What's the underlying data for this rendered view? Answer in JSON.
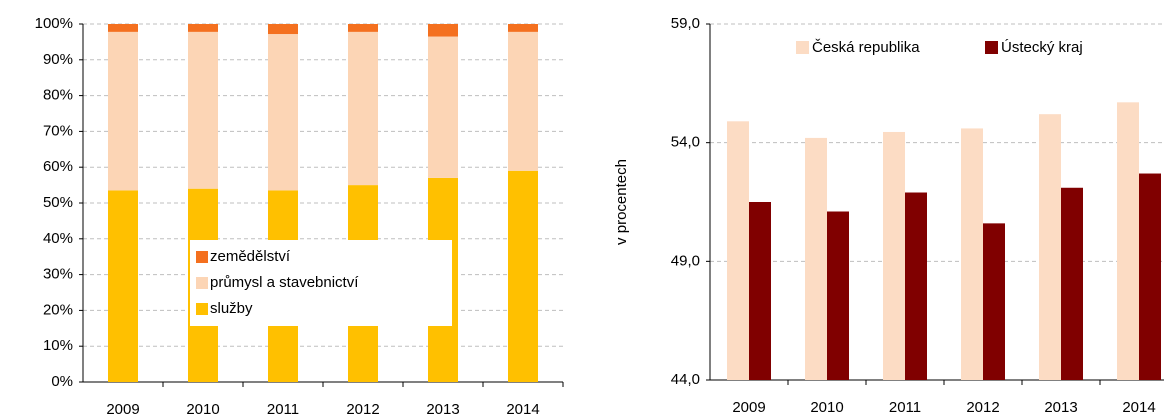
{
  "chart_data": [
    {
      "type": "bar",
      "stacked": true,
      "categories": [
        "2009",
        "2010",
        "2011",
        "2012",
        "2013",
        "2014"
      ],
      "series": [
        {
          "name": "služby",
          "color": "#ffc000",
          "values": [
            53.5,
            54,
            53.5,
            55,
            57,
            59
          ]
        },
        {
          "name": "průmysl a stavebnictví",
          "color": "#fcd5b5",
          "values": [
            44.3,
            43.8,
            43.7,
            42.8,
            39.5,
            38.8
          ]
        },
        {
          "name": "zemědělství",
          "color": "#f4701f",
          "values": [
            2.2,
            2.2,
            2.8,
            2.2,
            3.5,
            2.2
          ]
        }
      ],
      "ylim": [
        0,
        100
      ],
      "yticks": [
        {
          "value": 0,
          "label": "0%"
        },
        {
          "value": 10,
          "label": "10%"
        },
        {
          "value": 20,
          "label": "20%"
        },
        {
          "value": 30,
          "label": "30%"
        },
        {
          "value": 40,
          "label": "40%"
        },
        {
          "value": 50,
          "label": "50%"
        },
        {
          "value": 60,
          "label": "60%"
        },
        {
          "value": 70,
          "label": "70%"
        },
        {
          "value": 80,
          "label": "80%"
        },
        {
          "value": 90,
          "label": "90%"
        },
        {
          "value": 100,
          "label": "100%"
        }
      ],
      "grid": true,
      "legend": "lower center"
    },
    {
      "type": "bar",
      "stacked": false,
      "ylabel": "v procentech",
      "categories": [
        "2009",
        "2010",
        "2011",
        "2012",
        "2013",
        "2014"
      ],
      "series": [
        {
          "name": "Česká republika",
          "color": "#fcdcc4",
          "values": [
            54.9,
            54.2,
            54.45,
            54.6,
            55.2,
            55.7
          ]
        },
        {
          "name": "Ústecký kraj",
          "color": "#800000",
          "values": [
            51.5,
            51.1,
            51.9,
            50.6,
            52.1,
            52.7
          ]
        }
      ],
      "ylim": [
        44,
        59
      ],
      "yticks": [
        {
          "value": 44,
          "label": "44,0"
        },
        {
          "value": 49,
          "label": "49,0"
        },
        {
          "value": 54,
          "label": "54,0"
        },
        {
          "value": 59,
          "label": "59,0"
        }
      ],
      "grid": true,
      "legend": "upper center"
    }
  ]
}
